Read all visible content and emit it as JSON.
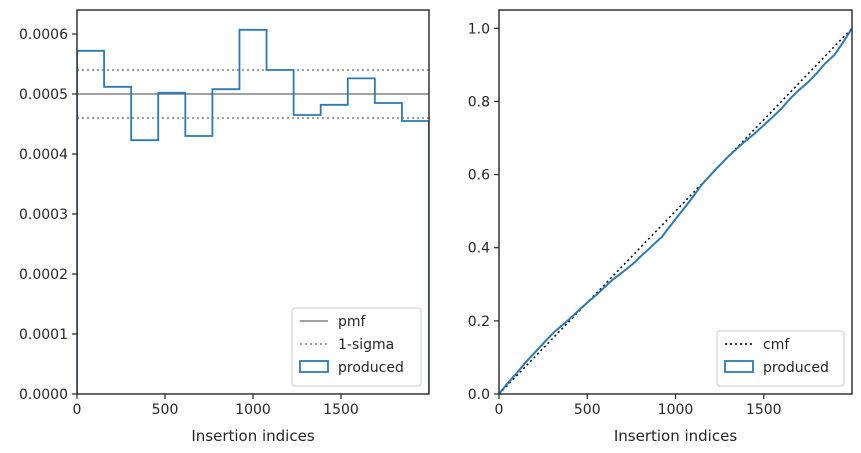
{
  "chart_data": [
    {
      "type": "line",
      "xlabel": "Insertion indices",
      "ylabel": "",
      "xlim": [
        0,
        2000
      ],
      "ylim": [
        0,
        0.00064
      ],
      "xticks": [
        0,
        500,
        1000,
        1500
      ],
      "xtick_labels": [
        "0",
        "500",
        "1000",
        "1500"
      ],
      "yticks": [
        0,
        0.0001,
        0.0002,
        0.0003,
        0.0004,
        0.0005,
        0.0006
      ],
      "ytick_labels": [
        "0.0000",
        "0.0001",
        "0.0002",
        "0.0003",
        "0.0004",
        "0.0005",
        "0.0006"
      ],
      "legend_position": "lower-right",
      "series": [
        {
          "name": "pmf",
          "kind": "hline",
          "value": 0.0005,
          "color": "#808080",
          "dash": "solid"
        },
        {
          "name": "1-sigma",
          "kind": "hlines",
          "values": [
            0.00054,
            0.00046
          ],
          "color": "#808080",
          "dash": "dotted"
        },
        {
          "name": "produced",
          "kind": "step-histogram",
          "color": "#2a7ab5",
          "bin_edges": [
            0,
            153.8,
            307.7,
            461.5,
            615.4,
            769.2,
            923.1,
            1076.9,
            1230.8,
            1384.6,
            1538.5,
            1692.3,
            1846.2,
            2000
          ],
          "values": [
            0.000572,
            0.000512,
            0.000423,
            0.000502,
            0.00043,
            0.000508,
            0.000607,
            0.00054,
            0.000465,
            0.000482,
            0.000526,
            0.000485,
            0.000455
          ]
        }
      ]
    },
    {
      "type": "line",
      "xlabel": "Insertion indices",
      "ylabel": "",
      "xlim": [
        0,
        2000
      ],
      "ylim": [
        0,
        1.05
      ],
      "xticks": [
        0,
        500,
        1000,
        1500
      ],
      "xtick_labels": [
        "0",
        "500",
        "1000",
        "1500"
      ],
      "yticks": [
        0,
        0.2,
        0.4,
        0.6,
        0.8,
        1.0
      ],
      "ytick_labels": [
        "0.0",
        "0.2",
        "0.4",
        "0.6",
        "0.8",
        "1.0"
      ],
      "legend_position": "lower-right",
      "series": [
        {
          "name": "cmf",
          "kind": "line",
          "color": "#000000",
          "dash": "dotted",
          "x": [
            0,
            2000
          ],
          "y": [
            0,
            1.0
          ]
        },
        {
          "name": "produced",
          "kind": "cumulative",
          "color": "#2a7ab5",
          "x": [
            0,
            50,
            100,
            153.8,
            200,
            250,
            307.7,
            350,
            400,
            461.5,
            500,
            550,
            615.4,
            650,
            700,
            769.2,
            800,
            850,
            923.1,
            950,
            1000,
            1076.9,
            1100,
            1150,
            1230.8,
            1250,
            1300,
            1384.6,
            1400,
            1450,
            1538.5,
            1600,
            1650,
            1692.3,
            1750,
            1800,
            1846.2,
            1900,
            1950,
            2000
          ],
          "y": [
            0,
            0.03,
            0.057,
            0.088,
            0.112,
            0.138,
            0.167,
            0.185,
            0.205,
            0.233,
            0.25,
            0.27,
            0.3,
            0.315,
            0.333,
            0.36,
            0.375,
            0.397,
            0.43,
            0.447,
            0.478,
            0.525,
            0.54,
            0.573,
            0.616,
            0.625,
            0.65,
            0.687,
            0.693,
            0.713,
            0.752,
            0.78,
            0.808,
            0.828,
            0.852,
            0.877,
            0.903,
            0.927,
            0.962,
            1.0
          ]
        }
      ]
    }
  ]
}
